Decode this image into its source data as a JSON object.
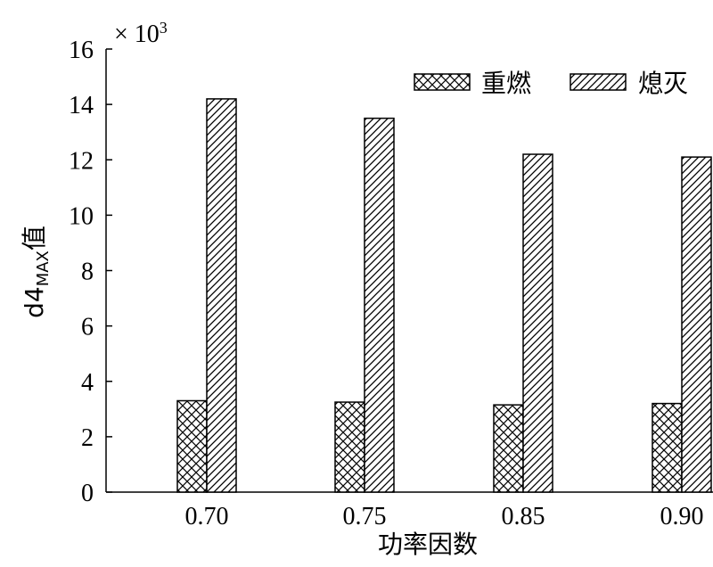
{
  "chart_data": {
    "type": "bar",
    "categories": [
      "0.70",
      "0.75",
      "0.85",
      "0.90"
    ],
    "series": [
      {
        "name": "重燃",
        "values": [
          3.3,
          3.25,
          3.15,
          3.2
        ],
        "pattern": "crosshatch"
      },
      {
        "name": "熄灭",
        "values": [
          14.2,
          13.5,
          12.2,
          12.1
        ],
        "pattern": "diagonal"
      }
    ],
    "xlabel": "功率因数",
    "ylabel_main": "d4",
    "ylabel_sub": "MAX",
    "ylabel_suffix": "值",
    "multiplier_prefix": "× 10",
    "multiplier_exp": "3",
    "ylim": [
      0,
      16
    ],
    "yticks": [
      "0",
      "2",
      "4",
      "6",
      "8",
      "10",
      "12",
      "14",
      "16"
    ],
    "grid": false,
    "legend_position": "top-right"
  }
}
